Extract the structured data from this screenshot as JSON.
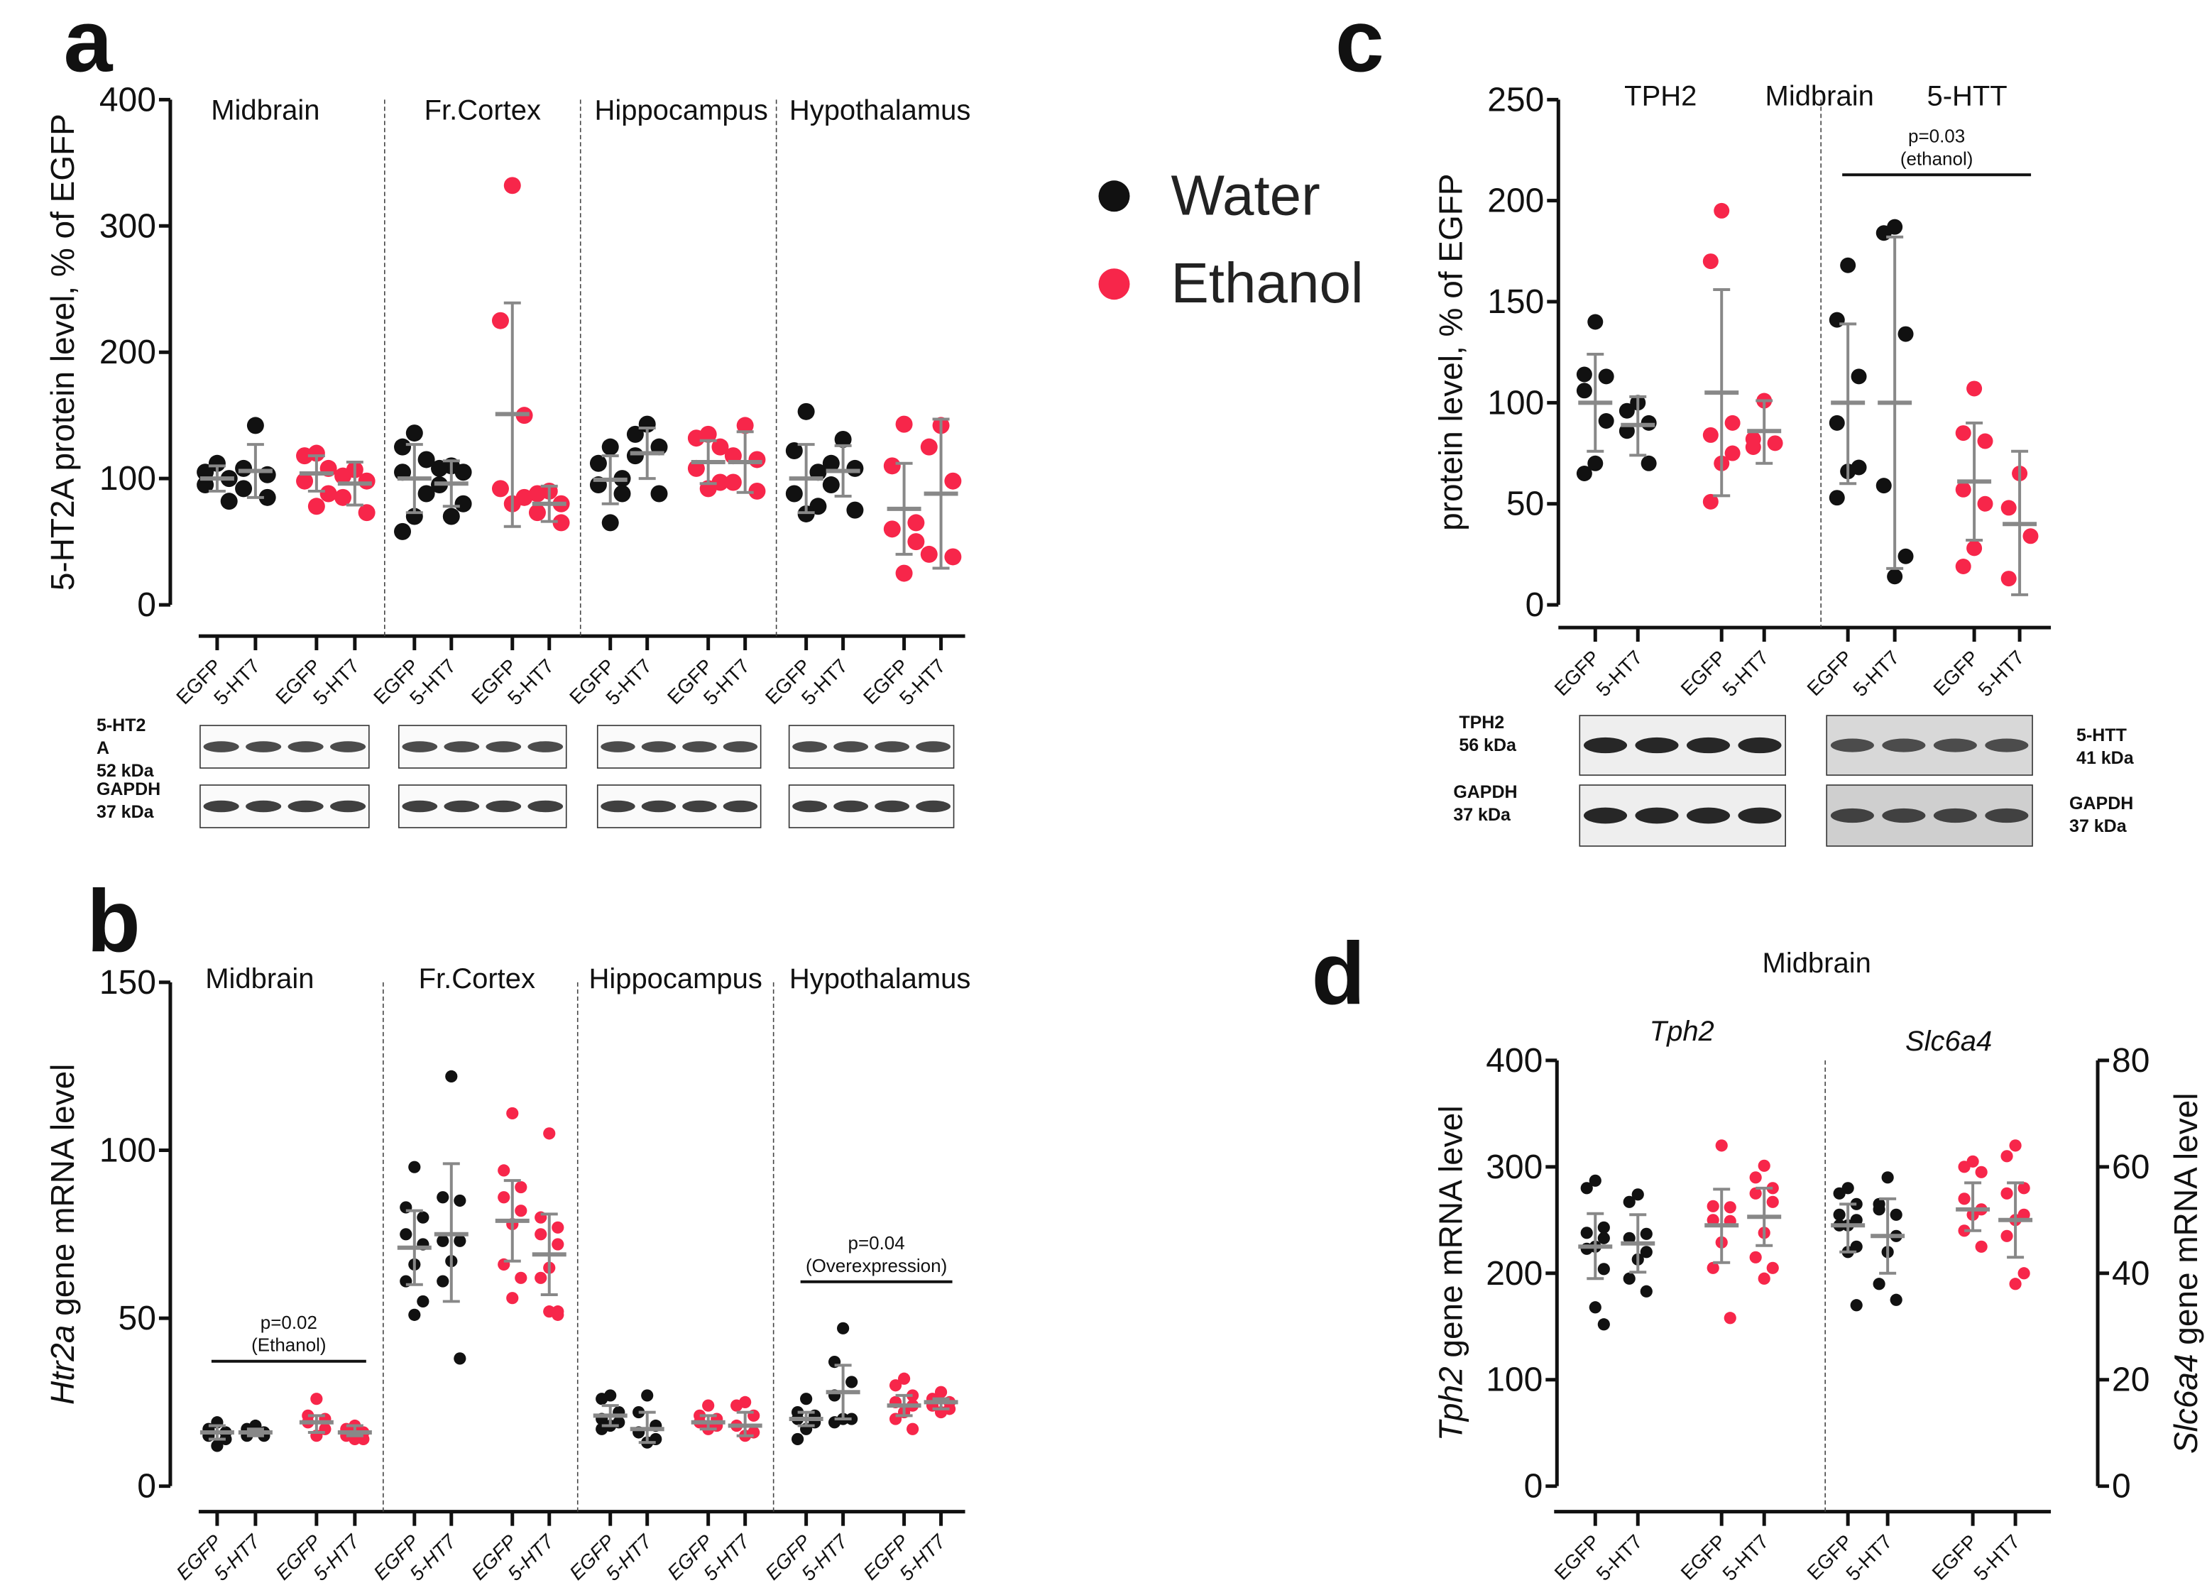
{
  "colors": {
    "water": "#111111",
    "ethanol": "#f7264a",
    "errorbar": "#888888"
  },
  "legend": {
    "water": "Water",
    "ethanol": "Ethanol"
  },
  "chart_data": [
    {
      "panel": "a",
      "type": "scatter",
      "ylabel": "5-HT2A protein level, % of EGFP",
      "ylabel_italic": "",
      "ylim": [
        0,
        400
      ],
      "yticks": [
        "0",
        "100",
        "200",
        "300",
        "400"
      ],
      "yticks_values": [
        0,
        100,
        200,
        300,
        400
      ],
      "regions": [
        "Midbrain",
        "Fr.Cortex",
        "Hippocampus",
        "Hypothalamus"
      ],
      "groups": [
        {
          "label": "EGFP",
          "treatment": "water",
          "points": [
            112,
            105,
            100,
            95,
            82
          ],
          "mean": 100,
          "err": [
            90,
            110
          ]
        },
        {
          "label": "5-HT7",
          "treatment": "water",
          "points": [
            142,
            108,
            103,
            92,
            85
          ],
          "mean": 106,
          "err": [
            85,
            127
          ]
        },
        {
          "label": "EGFP",
          "treatment": "ethanol",
          "points": [
            120,
            118,
            108,
            98,
            88,
            78
          ],
          "mean": 104,
          "err": [
            90,
            118
          ]
        },
        {
          "label": "5-HT7",
          "treatment": "ethanol",
          "points": [
            107,
            102,
            98,
            85,
            73
          ],
          "mean": 96,
          "err": [
            79,
            113
          ]
        },
        {
          "label": "EGFP",
          "treatment": "water",
          "points": [
            136,
            125,
            115,
            105,
            88,
            70,
            58
          ],
          "mean": 100,
          "err": [
            73,
            127
          ]
        },
        {
          "label": "5-HT7",
          "treatment": "water",
          "points": [
            110,
            108,
            105,
            95,
            80,
            70
          ],
          "mean": 96,
          "err": [
            78,
            114
          ]
        },
        {
          "label": "EGFP",
          "treatment": "ethanol",
          "points": [
            332,
            225,
            150,
            92,
            85,
            80
          ],
          "mean": 151,
          "err": [
            62,
            239
          ]
        },
        {
          "label": "5-HT7",
          "treatment": "ethanol",
          "points": [
            90,
            88,
            80,
            73,
            65
          ],
          "mean": 80,
          "err": [
            66,
            94
          ]
        },
        {
          "label": "EGFP",
          "treatment": "water",
          "points": [
            125,
            112,
            100,
            95,
            88,
            65
          ],
          "mean": 99,
          "err": [
            80,
            118
          ]
        },
        {
          "label": "5-HT7",
          "treatment": "water",
          "points": [
            143,
            135,
            125,
            118,
            88
          ],
          "mean": 120,
          "err": [
            100,
            140
          ]
        },
        {
          "label": "EGFP",
          "treatment": "ethanol",
          "points": [
            135,
            132,
            125,
            108,
            97,
            92
          ],
          "mean": 113,
          "err": [
            96,
            130
          ]
        },
        {
          "label": "5-HT7",
          "treatment": "ethanol",
          "points": [
            142,
            118,
            115,
            97,
            90
          ],
          "mean": 113,
          "err": [
            89,
            137
          ]
        },
        {
          "label": "EGFP",
          "treatment": "water",
          "points": [
            153,
            122,
            105,
            88,
            78,
            72
          ],
          "mean": 100,
          "err": [
            73,
            127
          ]
        },
        {
          "label": "5-HT7",
          "treatment": "water",
          "points": [
            131,
            112,
            108,
            95,
            75
          ],
          "mean": 106,
          "err": [
            86,
            126
          ]
        },
        {
          "label": "EGFP",
          "treatment": "ethanol",
          "points": [
            143,
            110,
            65,
            60,
            50,
            25
          ],
          "mean": 76,
          "err": [
            40,
            112
          ]
        },
        {
          "label": "5-HT7",
          "treatment": "ethanol",
          "points": [
            142,
            125,
            98,
            40,
            38
          ],
          "mean": 88,
          "err": [
            29,
            147
          ]
        }
      ],
      "annotations": [],
      "blots": {
        "labels": [
          {
            "lines": [
              "5-HT2",
              "A",
              "52 kDa"
            ]
          },
          {
            "lines": [
              "GAPDH",
              "37 kDa"
            ]
          }
        ]
      }
    },
    {
      "panel": "b",
      "type": "scatter",
      "ylabel": " gene mRNA level",
      "ylabel_italic": "Htr2a",
      "ylim": [
        0,
        150
      ],
      "yticks": [
        "0",
        "50",
        "100",
        "150"
      ],
      "yticks_values": [
        0,
        50,
        100,
        150
      ],
      "regions": [
        "Midbrain",
        "Fr.Cortex",
        "Hippocampus",
        "Hypothalamus"
      ],
      "groups": [
        {
          "label": "EGFP",
          "treatment": "water",
          "points": [
            19,
            17,
            16,
            15,
            14,
            12
          ],
          "mean": 16,
          "err": [
            14,
            18
          ]
        },
        {
          "label": "5-HT7",
          "treatment": "water",
          "points": [
            18,
            17,
            16,
            15,
            15
          ],
          "mean": 16,
          "err": [
            15,
            17
          ]
        },
        {
          "label": "EGFP",
          "treatment": "ethanol",
          "points": [
            26,
            21,
            20,
            19,
            17,
            15
          ],
          "mean": 19,
          "err": [
            16,
            21
          ]
        },
        {
          "label": "5-HT7",
          "treatment": "ethanol",
          "points": [
            18,
            17,
            16,
            15,
            14,
            14
          ],
          "mean": 16,
          "err": [
            15,
            18
          ]
        },
        {
          "label": "EGFP",
          "treatment": "water",
          "points": [
            95,
            83,
            80,
            75,
            72,
            66,
            61,
            55,
            51
          ],
          "mean": 71,
          "err": [
            60,
            82
          ]
        },
        {
          "label": "5-HT7",
          "treatment": "water",
          "points": [
            122,
            86,
            85,
            73,
            73,
            67,
            61,
            38
          ],
          "mean": 75,
          "err": [
            55,
            96
          ]
        },
        {
          "label": "EGFP",
          "treatment": "ethanol",
          "points": [
            111,
            94,
            89,
            86,
            82,
            78,
            66,
            62,
            56
          ],
          "mean": 79,
          "err": [
            67,
            91
          ]
        },
        {
          "label": "5-HT7",
          "treatment": "ethanol",
          "points": [
            105,
            80,
            77,
            75,
            72,
            65,
            62,
            52,
            52,
            51
          ],
          "mean": 69,
          "err": [
            57,
            81
          ]
        },
        {
          "label": "EGFP",
          "treatment": "water",
          "points": [
            27,
            26,
            22,
            20,
            19,
            18,
            17
          ],
          "mean": 21,
          "err": [
            18,
            24
          ]
        },
        {
          "label": "5-HT7",
          "treatment": "water",
          "points": [
            27,
            22,
            18,
            16,
            14,
            13
          ],
          "mean": 17,
          "err": [
            13,
            22
          ]
        },
        {
          "label": "EGFP",
          "treatment": "ethanol",
          "points": [
            24,
            21,
            20,
            19,
            18,
            17
          ],
          "mean": 19,
          "err": [
            17,
            21
          ]
        },
        {
          "label": "5-HT7",
          "treatment": "ethanol",
          "points": [
            25,
            24,
            21,
            18,
            16,
            15
          ],
          "mean": 18,
          "err": [
            15,
            22
          ]
        },
        {
          "label": "EGFP",
          "treatment": "water",
          "points": [
            26,
            22,
            21,
            20,
            19,
            17,
            14
          ],
          "mean": 20,
          "err": [
            18,
            22
          ]
        },
        {
          "label": "5-HT7",
          "treatment": "water",
          "points": [
            47,
            37,
            31,
            27,
            20,
            20,
            19
          ],
          "mean": 28,
          "err": [
            20,
            36
          ]
        },
        {
          "label": "EGFP",
          "treatment": "ethanol",
          "points": [
            32,
            30,
            27,
            25,
            24,
            22,
            20,
            17
          ],
          "mean": 24,
          "err": [
            21,
            27
          ]
        },
        {
          "label": "5-HT7",
          "treatment": "ethanol",
          "points": [
            28,
            26,
            25,
            24,
            23,
            22
          ],
          "mean": 25,
          "err": [
            23,
            26
          ]
        }
      ],
      "annotations": [
        {
          "text": "p=0.02",
          "sub": "(Ethanol)",
          "from_group": 0,
          "to_group": 3
        },
        {
          "text": "p=0.04",
          "sub": "(Overexpression)",
          "from_group": 12,
          "to_group": 15
        }
      ]
    },
    {
      "panel": "c",
      "type": "scatter",
      "ylabel": "protein level, % of EGFP",
      "ylabel_italic": "",
      "ylim": [
        0,
        250
      ],
      "yticks": [
        "0",
        "50",
        "100",
        "150",
        "200",
        "250"
      ],
      "yticks_values": [
        0,
        50,
        100,
        150,
        200,
        250
      ],
      "regions": [
        "TPH2",
        "Midbrain",
        "5-HTT"
      ],
      "groups": [
        {
          "label": "EGFP",
          "treatment": "water",
          "points": [
            140,
            114,
            113,
            106,
            91,
            70,
            65
          ],
          "mean": 100,
          "err": [
            76,
            124
          ]
        },
        {
          "label": "5-HT7",
          "treatment": "water",
          "points": [
            100,
            96,
            90,
            86,
            70
          ],
          "mean": 89,
          "err": [
            74,
            103
          ]
        },
        {
          "label": "EGFP",
          "treatment": "ethanol",
          "points": [
            195,
            170,
            90,
            84,
            75,
            70,
            51
          ],
          "mean": 105,
          "err": [
            54,
            156
          ]
        },
        {
          "label": "5-HT7",
          "treatment": "ethanol",
          "points": [
            101,
            82,
            80,
            78
          ],
          "mean": 86,
          "err": [
            70,
            101
          ]
        },
        {
          "label": "EGFP",
          "treatment": "water",
          "points": [
            168,
            141,
            113,
            90,
            68,
            66,
            53
          ],
          "mean": 100,
          "err": [
            60,
            139
          ]
        },
        {
          "label": "5-HT7",
          "treatment": "water",
          "points": [
            187,
            184,
            134,
            59,
            24,
            14
          ],
          "mean": 100,
          "err": [
            18,
            182
          ]
        },
        {
          "label": "EGFP",
          "treatment": "ethanol",
          "points": [
            107,
            85,
            81,
            57,
            50,
            28,
            19
          ],
          "mean": 61,
          "err": [
            32,
            90
          ]
        },
        {
          "label": "5-HT7",
          "treatment": "ethanol",
          "points": [
            65,
            48,
            34,
            13
          ],
          "mean": 40,
          "err": [
            5,
            76
          ]
        }
      ],
      "annotations": [
        {
          "text": "p=0.03",
          "sub": "(ethanol)",
          "from_group": 4,
          "to_group": 7
        }
      ],
      "blots": {
        "labels": [
          {
            "lines": [
              "TPH2",
              "56 kDa"
            ]
          },
          {
            "lines": [
              "GAPDH",
              "37 kDa"
            ]
          },
          {
            "lines": [
              "5-HTT",
              "41 kDa"
            ]
          },
          {
            "lines": [
              "GAPDH",
              "37 kDa"
            ]
          }
        ]
      }
    },
    {
      "panel": "d",
      "type": "scatter",
      "title": "Midbrain",
      "ylabel": " gene mRNA level",
      "ylabel_italic": "Tph2",
      "ylabel_right": " gene mRNA level",
      "ylabel_right_italic": "Slc6a4",
      "ylim": [
        0,
        400
      ],
      "yticks": [
        "0",
        "100",
        "200",
        "300",
        "400"
      ],
      "yticks_values": [
        0,
        100,
        200,
        300,
        400
      ],
      "ylim_right": [
        0,
        80
      ],
      "yticks_right": [
        "0",
        "20",
        "40",
        "60",
        "80"
      ],
      "yticks_right_values": [
        0,
        20,
        40,
        60,
        80
      ],
      "regions": [
        "Tph2",
        "Slc6a4"
      ],
      "groups": [
        {
          "label": "EGFP",
          "treatment": "water",
          "axis": "left",
          "points": [
            287,
            280,
            243,
            238,
            233,
            225,
            223,
            204,
            168,
            152
          ],
          "mean": 225,
          "err": [
            195,
            256
          ]
        },
        {
          "label": "5-HT7",
          "treatment": "water",
          "axis": "left",
          "points": [
            274,
            267,
            237,
            233,
            220,
            213,
            195,
            183
          ],
          "mean": 228,
          "err": [
            201,
            255
          ]
        },
        {
          "label": "EGFP",
          "treatment": "ethanol",
          "axis": "left",
          "points": [
            320,
            263,
            262,
            250,
            249,
            229,
            205,
            158
          ],
          "mean": 245,
          "err": [
            210,
            279
          ]
        },
        {
          "label": "5-HT7",
          "treatment": "ethanol",
          "axis": "left",
          "points": [
            301,
            290,
            280,
            275,
            267,
            238,
            215,
            205,
            195
          ],
          "mean": 253,
          "err": [
            226,
            280
          ]
        },
        {
          "label": "EGFP",
          "treatment": "water",
          "axis": "right",
          "points": [
            56,
            55,
            53,
            51,
            50,
            49,
            49,
            45,
            44,
            34
          ],
          "mean": 49,
          "err": [
            44,
            53
          ]
        },
        {
          "label": "5-HT7",
          "treatment": "water",
          "axis": "right",
          "points": [
            58,
            53,
            51,
            52,
            47,
            44,
            38,
            35
          ],
          "mean": 47,
          "err": [
            40,
            54
          ]
        },
        {
          "label": "EGFP",
          "treatment": "ethanol",
          "axis": "right",
          "points": [
            61,
            60,
            59,
            54,
            52,
            51,
            48,
            45
          ],
          "mean": 52,
          "err": [
            48,
            57
          ]
        },
        {
          "label": "5-HT7",
          "treatment": "ethanol",
          "axis": "right",
          "points": [
            64,
            62,
            56,
            55,
            51,
            50,
            47,
            40,
            38
          ],
          "mean": 50,
          "err": [
            43,
            57
          ]
        }
      ],
      "annotations": []
    }
  ]
}
